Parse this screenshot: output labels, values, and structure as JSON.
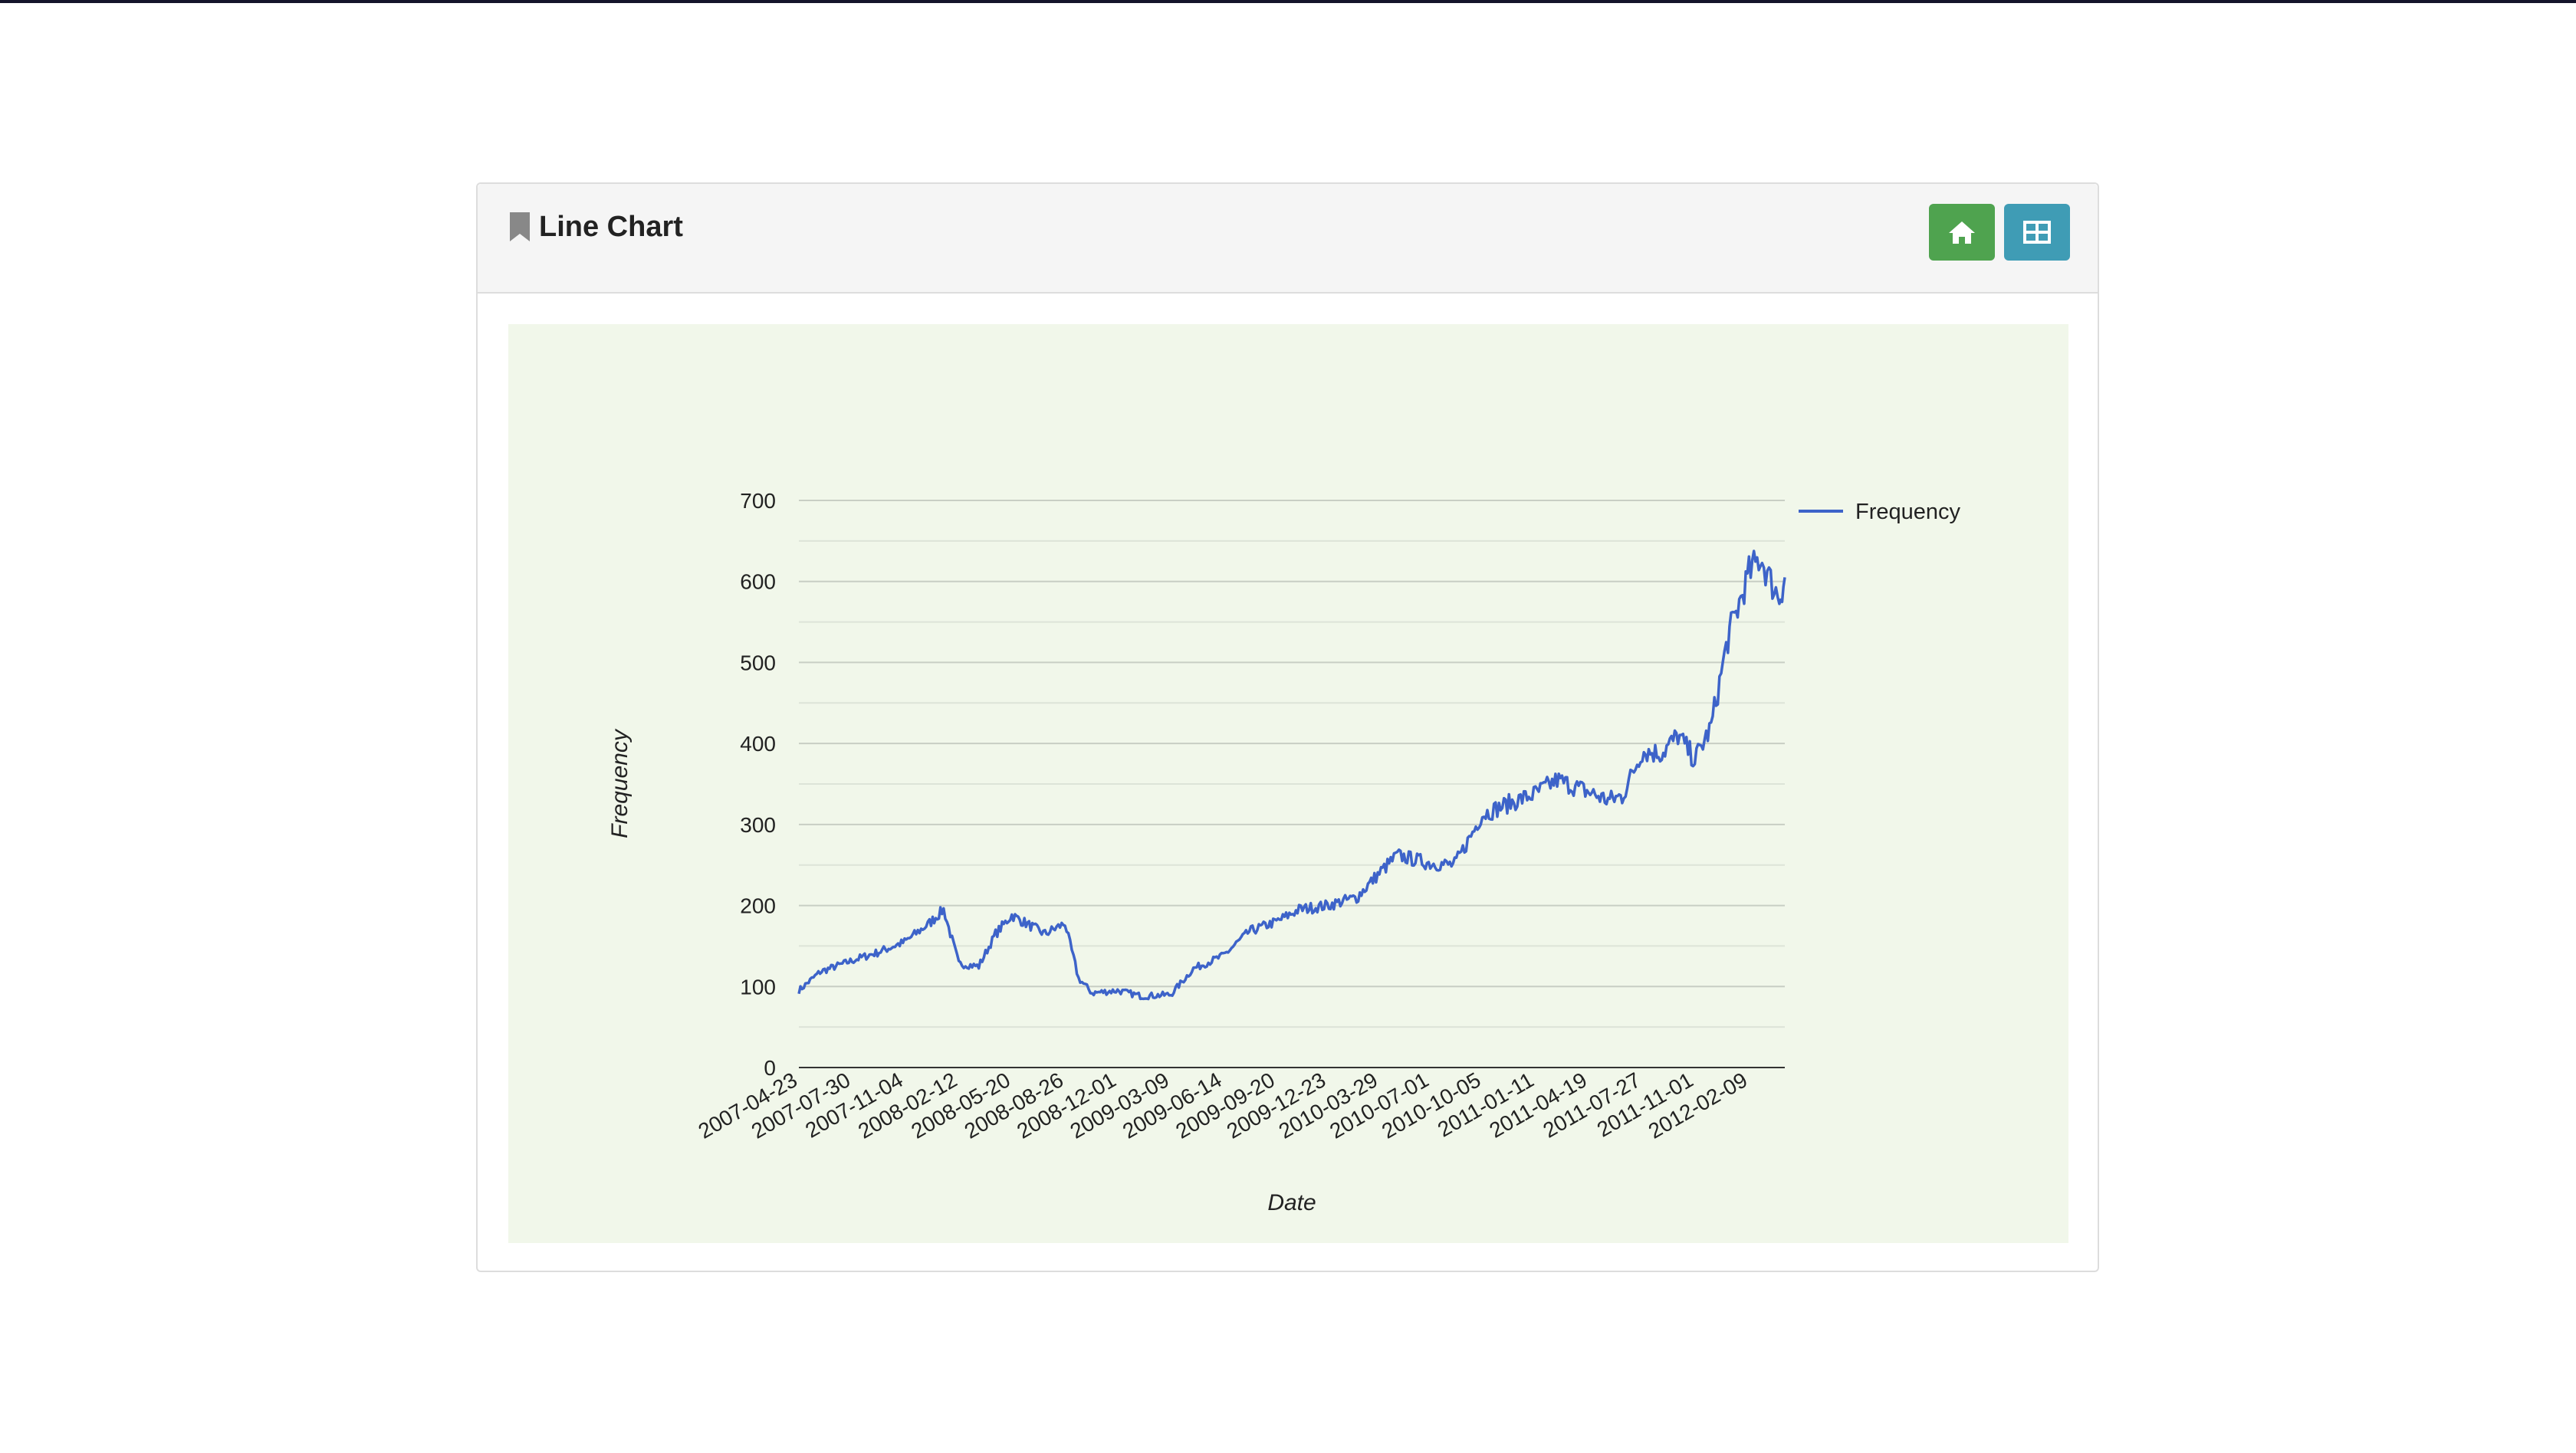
{
  "panel": {
    "title": "Line Chart",
    "home_icon": "home-icon",
    "table_icon": "table-icon",
    "bookmark_icon": "bookmark-icon"
  },
  "colors": {
    "line": "#3d63c9",
    "chart_bg": "#f1f7ea",
    "home_button": "#4fa34f",
    "table_button": "#3f9cb5"
  },
  "chart_data": {
    "type": "line",
    "title": "",
    "xlabel": "Date",
    "ylabel": "Frequency",
    "ylim": [
      0,
      700
    ],
    "yticks": [
      0,
      100,
      200,
      300,
      400,
      500,
      600,
      700
    ],
    "xtick_labels": [
      "2007-04-23",
      "2007-07-30",
      "2007-11-04",
      "2008-02-12",
      "2008-05-20",
      "2008-08-26",
      "2008-12-01",
      "2009-03-09",
      "2009-06-14",
      "2009-09-20",
      "2009-12-23",
      "2010-03-29",
      "2010-07-01",
      "2010-10-05",
      "2011-01-11",
      "2011-04-19",
      "2011-07-27",
      "2011-11-01",
      "2012-02-09"
    ],
    "grid": true,
    "legend_position": "right",
    "series": [
      {
        "name": "Frequency",
        "x": [
          "2007-04-23",
          "2007-06-01",
          "2007-07-30",
          "2007-09-15",
          "2007-11-04",
          "2007-12-20",
          "2008-01-15",
          "2008-02-12",
          "2008-03-20",
          "2008-04-20",
          "2008-05-20",
          "2008-06-15",
          "2008-07-20",
          "2008-08-26",
          "2008-09-20",
          "2008-10-15",
          "2008-12-01",
          "2009-01-15",
          "2009-03-09",
          "2009-04-20",
          "2009-06-14",
          "2009-08-01",
          "2009-09-20",
          "2009-11-01",
          "2009-12-23",
          "2010-02-15",
          "2010-03-29",
          "2010-05-01",
          "2010-07-01",
          "2010-08-15",
          "2010-10-05",
          "2010-11-20",
          "2011-01-11",
          "2011-02-20",
          "2011-04-19",
          "2011-05-25",
          "2011-06-20",
          "2011-07-27",
          "2011-09-01",
          "2011-10-01",
          "2011-11-01",
          "2011-12-01",
          "2012-01-01",
          "2012-02-09",
          "2012-03-01",
          "2012-03-20",
          "2012-04-05",
          "2012-04-15"
        ],
        "values": [
          95,
          118,
          132,
          142,
          155,
          178,
          195,
          128,
          125,
          165,
          188,
          178,
          165,
          178,
          110,
          92,
          95,
          88,
          90,
          122,
          138,
          168,
          180,
          195,
          200,
          210,
          240,
          262,
          252,
          250,
          312,
          325,
          338,
          355,
          340,
          330,
          335,
          390,
          388,
          410,
          380,
          420,
          530,
          610,
          630,
          600,
          580,
          605
        ]
      }
    ]
  }
}
